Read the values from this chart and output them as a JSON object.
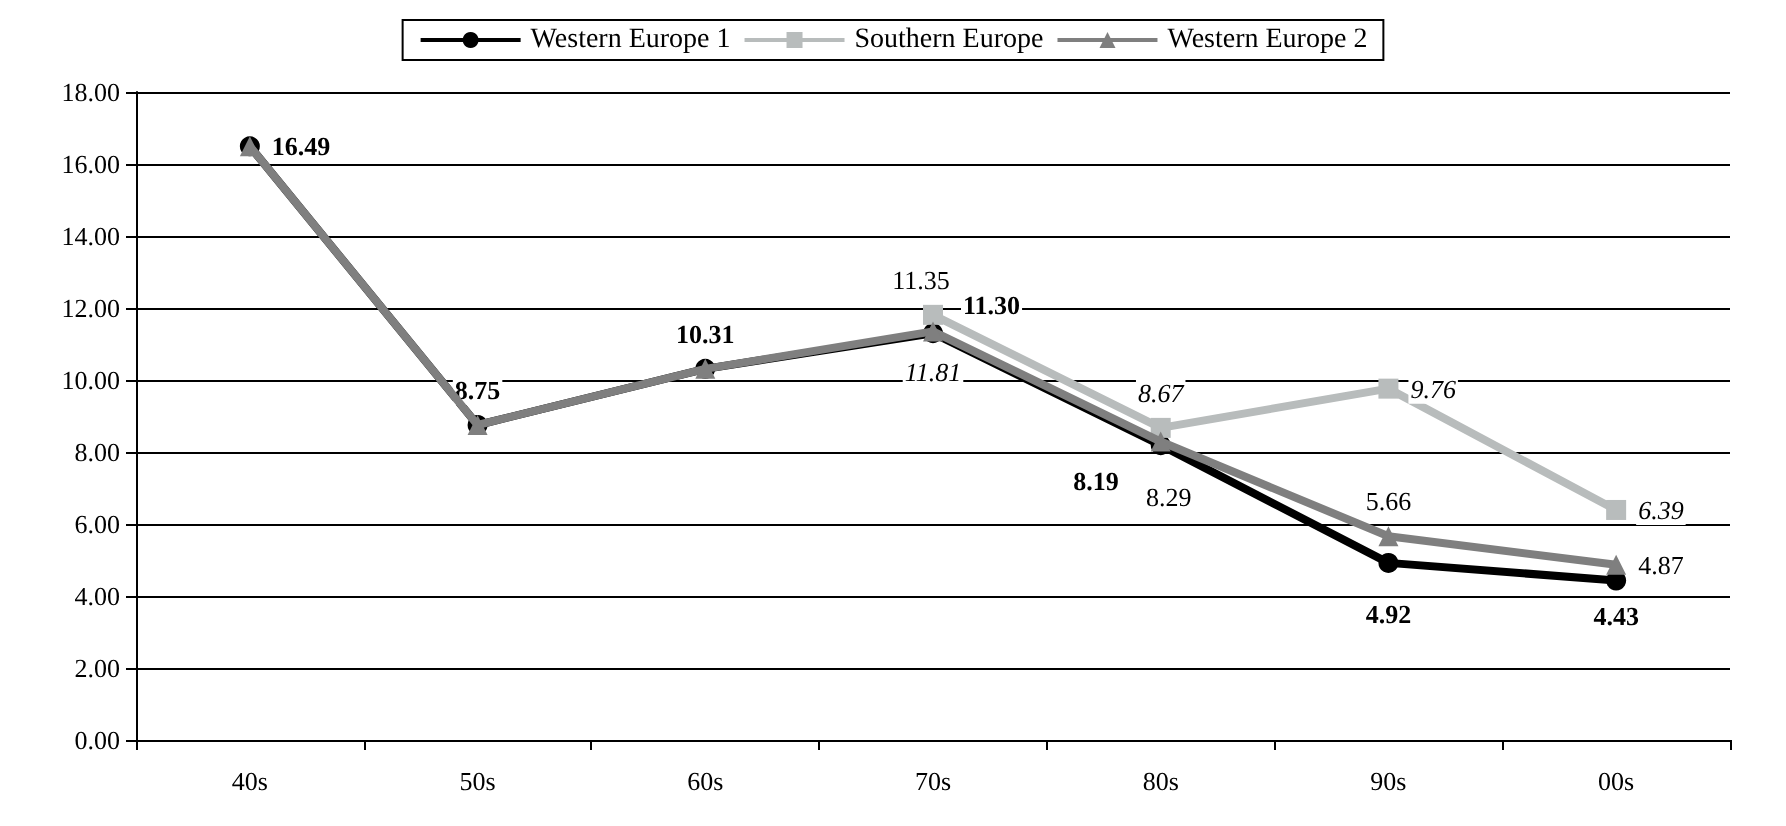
{
  "chart_data": {
    "type": "line",
    "categories": [
      "40s",
      "50s",
      "60s",
      "70s",
      "80s",
      "90s",
      "00s"
    ],
    "series": [
      {
        "name": "Western Europe 1",
        "color": "#000000",
        "marker": "circle",
        "values": [
          16.49,
          8.75,
          10.31,
          11.3,
          8.19,
          4.92,
          4.43
        ],
        "value_labels": [
          "16.49",
          "8.75",
          "10.31",
          "11.30",
          "8.19",
          "4.92",
          "4.43"
        ]
      },
      {
        "name": "Southern Europe",
        "color": "#b8bcbc",
        "marker": "square",
        "values": [
          null,
          null,
          null,
          11.81,
          8.67,
          9.76,
          6.39
        ],
        "value_labels": [
          null,
          null,
          null,
          "11.81",
          "8.67",
          "9.76",
          "6.39"
        ]
      },
      {
        "name": "Western Europe 2",
        "color": "#7f7f7f",
        "marker": "triangle",
        "values": [
          16.49,
          8.75,
          10.31,
          11.35,
          8.29,
          5.66,
          4.87
        ],
        "value_labels": [
          null,
          null,
          null,
          "11.35",
          "8.29",
          "5.66",
          "4.87"
        ]
      }
    ],
    "ylim": [
      0,
      18
    ],
    "yticks": [
      {
        "value": 0,
        "label": "0.00"
      },
      {
        "value": 2,
        "label": "2.00"
      },
      {
        "value": 4,
        "label": "4.00"
      },
      {
        "value": 6,
        "label": "6.00"
      },
      {
        "value": 8,
        "label": "8.00"
      },
      {
        "value": 10,
        "label": "10.00"
      },
      {
        "value": 12,
        "label": "12.00"
      },
      {
        "value": 14,
        "label": "14.00"
      },
      {
        "value": 16,
        "label": "16.00"
      },
      {
        "value": 18,
        "label": "18.00"
      }
    ],
    "grid": "y",
    "legend": "top"
  }
}
